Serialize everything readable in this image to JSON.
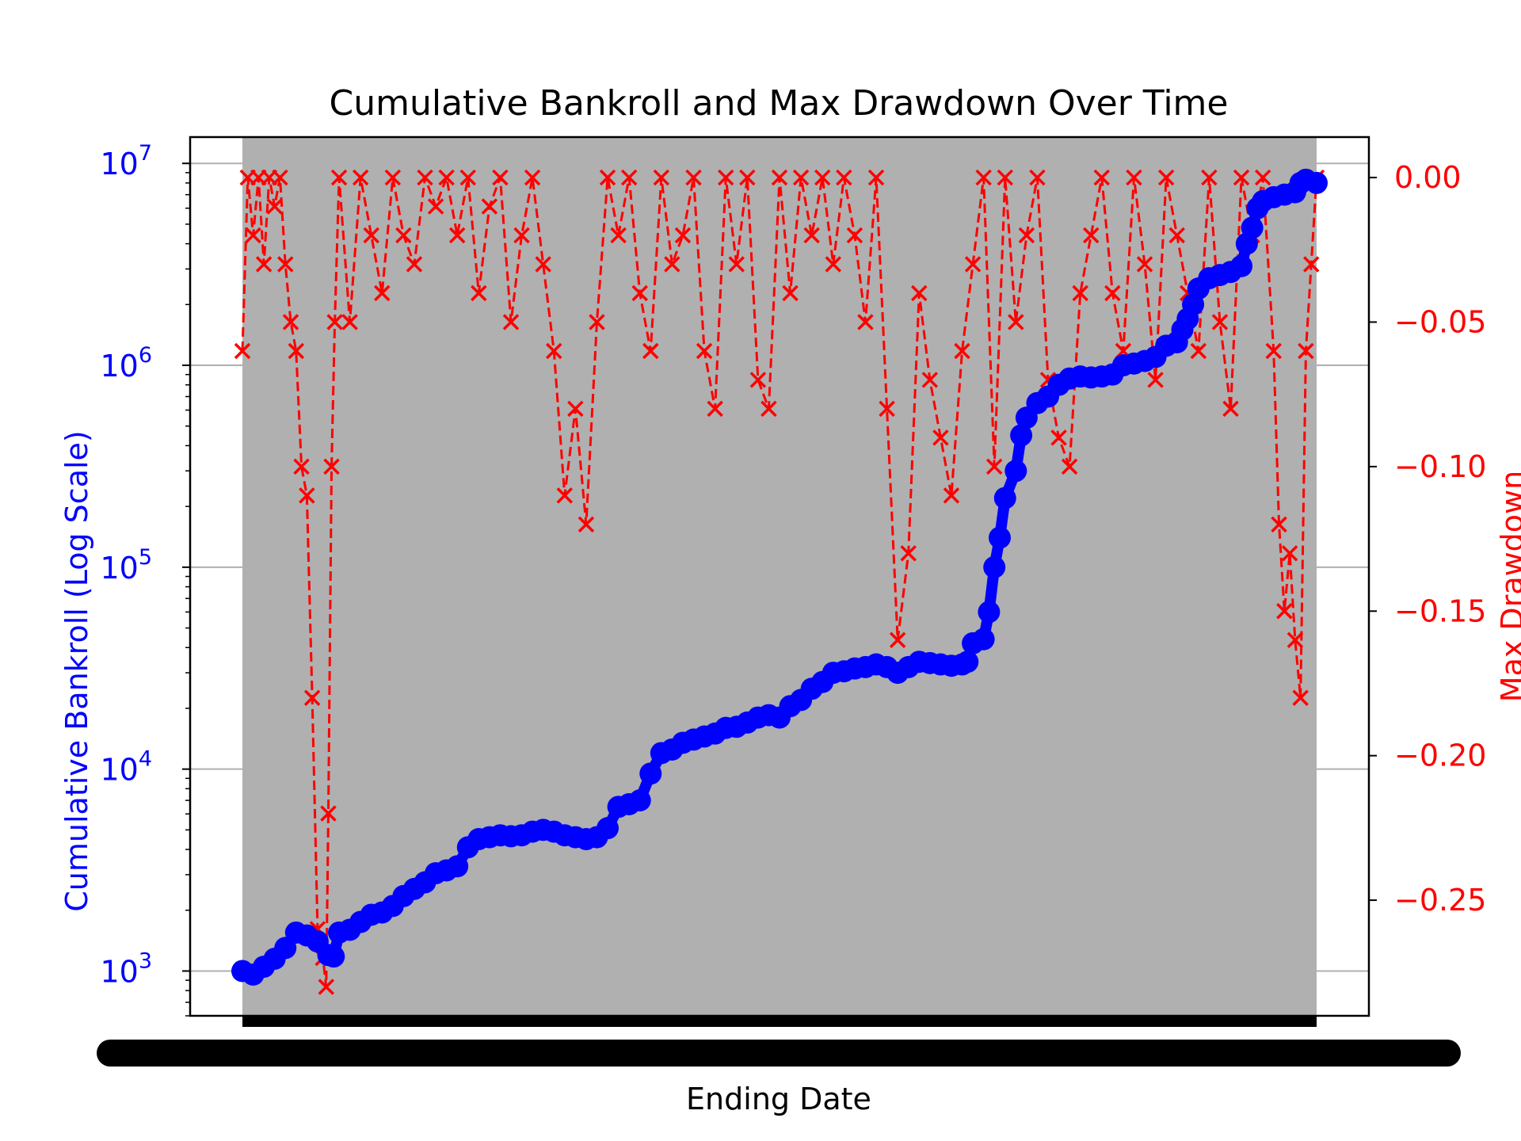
{
  "chart_data": {
    "type": "line",
    "title": "Cumulative Bankroll and Max Drawdown Over Time",
    "xlabel": "Ending Date",
    "ylabel_left": "Cumulative Bankroll (Log Scale)",
    "ylabel_right": "Max Drawdown",
    "y_left_scale": "log",
    "y_left_ticks": [
      {
        "value": 1000,
        "base": "10",
        "exp": "3"
      },
      {
        "value": 10000,
        "base": "10",
        "exp": "4"
      },
      {
        "value": 100000,
        "base": "10",
        "exp": "5"
      },
      {
        "value": 1000000,
        "base": "10",
        "exp": "6"
      },
      {
        "value": 10000000,
        "base": "10",
        "exp": "7"
      }
    ],
    "y_left_lim": [
      600,
      13500000
    ],
    "y_right_ticks": [
      {
        "value": 0.0,
        "label": "0.00"
      },
      {
        "value": -0.05,
        "label": "−0.05"
      },
      {
        "value": -0.1,
        "label": "−0.10"
      },
      {
        "value": -0.15,
        "label": "−0.15"
      },
      {
        "value": -0.2,
        "label": "−0.20"
      },
      {
        "value": -0.25,
        "label": "−0.25"
      }
    ],
    "y_right_lim": [
      -0.29,
      0.014
    ],
    "grid": "y",
    "colors": {
      "bankroll": "#0000ff",
      "drawdown": "#ff0000",
      "plot_background": "#b0b0b0",
      "grid": "#b0b0b0"
    },
    "x_ticks_overlapping": true,
    "series": [
      {
        "axis": "left",
        "marker": "circle",
        "style": "solid",
        "points": [
          [
            0,
            1000
          ],
          [
            0.01,
            960
          ],
          [
            0.02,
            1050
          ],
          [
            0.03,
            1150
          ],
          [
            0.04,
            1300
          ],
          [
            0.05,
            1550
          ],
          [
            0.06,
            1500
          ],
          [
            0.07,
            1400
          ],
          [
            0.08,
            1200
          ],
          [
            0.085,
            1180
          ],
          [
            0.09,
            1550
          ],
          [
            0.1,
            1600
          ],
          [
            0.11,
            1750
          ],
          [
            0.12,
            1900
          ],
          [
            0.13,
            1950
          ],
          [
            0.14,
            2100
          ],
          [
            0.15,
            2350
          ],
          [
            0.16,
            2550
          ],
          [
            0.17,
            2750
          ],
          [
            0.18,
            3050
          ],
          [
            0.19,
            3150
          ],
          [
            0.2,
            3300
          ],
          [
            0.21,
            4100
          ],
          [
            0.22,
            4500
          ],
          [
            0.23,
            4600
          ],
          [
            0.24,
            4700
          ],
          [
            0.25,
            4650
          ],
          [
            0.26,
            4700
          ],
          [
            0.27,
            4900
          ],
          [
            0.28,
            5000
          ],
          [
            0.29,
            4900
          ],
          [
            0.3,
            4700
          ],
          [
            0.31,
            4600
          ],
          [
            0.32,
            4500
          ],
          [
            0.33,
            4600
          ],
          [
            0.34,
            5100
          ],
          [
            0.35,
            6500
          ],
          [
            0.36,
            6700
          ],
          [
            0.37,
            7000
          ],
          [
            0.38,
            9500
          ],
          [
            0.39,
            12000
          ],
          [
            0.4,
            12500
          ],
          [
            0.41,
            13500
          ],
          [
            0.42,
            14000
          ],
          [
            0.43,
            14500
          ],
          [
            0.44,
            15000
          ],
          [
            0.45,
            16000
          ],
          [
            0.46,
            16200
          ],
          [
            0.47,
            17000
          ],
          [
            0.48,
            18000
          ],
          [
            0.49,
            18500
          ],
          [
            0.5,
            18000
          ],
          [
            0.51,
            20500
          ],
          [
            0.52,
            22000
          ],
          [
            0.53,
            25000
          ],
          [
            0.54,
            27000
          ],
          [
            0.55,
            30000
          ],
          [
            0.56,
            30500
          ],
          [
            0.57,
            31500
          ],
          [
            0.58,
            32000
          ],
          [
            0.59,
            33000
          ],
          [
            0.6,
            32000
          ],
          [
            0.61,
            30000
          ],
          [
            0.62,
            32000
          ],
          [
            0.63,
            34000
          ],
          [
            0.64,
            33500
          ],
          [
            0.65,
            33000
          ],
          [
            0.66,
            32500
          ],
          [
            0.67,
            33000
          ],
          [
            0.675,
            34000
          ],
          [
            0.68,
            42000
          ],
          [
            0.69,
            44000
          ],
          [
            0.695,
            60000
          ],
          [
            0.7,
            100000
          ],
          [
            0.705,
            140000
          ],
          [
            0.71,
            220000
          ],
          [
            0.72,
            300000
          ],
          [
            0.725,
            450000
          ],
          [
            0.73,
            550000
          ],
          [
            0.74,
            650000
          ],
          [
            0.75,
            700000
          ],
          [
            0.76,
            800000
          ],
          [
            0.77,
            860000
          ],
          [
            0.78,
            880000
          ],
          [
            0.79,
            870000
          ],
          [
            0.8,
            880000
          ],
          [
            0.81,
            900000
          ],
          [
            0.82,
            1000000
          ],
          [
            0.83,
            1020000
          ],
          [
            0.84,
            1050000
          ],
          [
            0.85,
            1100000
          ],
          [
            0.86,
            1250000
          ],
          [
            0.87,
            1300000
          ],
          [
            0.875,
            1500000
          ],
          [
            0.88,
            1700000
          ],
          [
            0.885,
            2000000
          ],
          [
            0.89,
            2400000
          ],
          [
            0.9,
            2700000
          ],
          [
            0.91,
            2800000
          ],
          [
            0.92,
            2900000
          ],
          [
            0.93,
            3100000
          ],
          [
            0.935,
            4000000
          ],
          [
            0.94,
            4800000
          ],
          [
            0.945,
            6000000
          ],
          [
            0.95,
            6500000
          ],
          [
            0.96,
            6800000
          ],
          [
            0.97,
            7000000
          ],
          [
            0.98,
            7200000
          ],
          [
            0.985,
            8000000
          ],
          [
            0.99,
            8300000
          ],
          [
            1.0,
            8000000
          ]
        ]
      },
      {
        "axis": "right",
        "marker": "x",
        "style": "dashed",
        "points": [
          [
            0.0,
            -0.06
          ],
          [
            0.005,
            0
          ],
          [
            0.01,
            -0.02
          ],
          [
            0.015,
            0
          ],
          [
            0.02,
            -0.03
          ],
          [
            0.025,
            0
          ],
          [
            0.03,
            -0.01
          ],
          [
            0.035,
            0
          ],
          [
            0.04,
            -0.03
          ],
          [
            0.045,
            -0.05
          ],
          [
            0.05,
            -0.06
          ],
          [
            0.055,
            -0.1
          ],
          [
            0.06,
            -0.11
          ],
          [
            0.065,
            -0.18
          ],
          [
            0.07,
            -0.26
          ],
          [
            0.075,
            -0.27
          ],
          [
            0.078,
            -0.28
          ],
          [
            0.08,
            -0.22
          ],
          [
            0.083,
            -0.1
          ],
          [
            0.086,
            -0.05
          ],
          [
            0.09,
            0
          ],
          [
            0.1,
            -0.05
          ],
          [
            0.11,
            0
          ],
          [
            0.12,
            -0.02
          ],
          [
            0.13,
            -0.04
          ],
          [
            0.14,
            0
          ],
          [
            0.15,
            -0.02
          ],
          [
            0.16,
            -0.03
          ],
          [
            0.17,
            0
          ],
          [
            0.18,
            -0.01
          ],
          [
            0.19,
            0
          ],
          [
            0.2,
            -0.02
          ],
          [
            0.21,
            0
          ],
          [
            0.22,
            -0.04
          ],
          [
            0.23,
            -0.01
          ],
          [
            0.24,
            0
          ],
          [
            0.25,
            -0.05
          ],
          [
            0.26,
            -0.02
          ],
          [
            0.27,
            0
          ],
          [
            0.28,
            -0.03
          ],
          [
            0.29,
            -0.06
          ],
          [
            0.3,
            -0.11
          ],
          [
            0.31,
            -0.08
          ],
          [
            0.32,
            -0.12
          ],
          [
            0.33,
            -0.05
          ],
          [
            0.34,
            0
          ],
          [
            0.35,
            -0.02
          ],
          [
            0.36,
            0
          ],
          [
            0.37,
            -0.04
          ],
          [
            0.38,
            -0.06
          ],
          [
            0.39,
            0
          ],
          [
            0.4,
            -0.03
          ],
          [
            0.41,
            -0.02
          ],
          [
            0.42,
            0
          ],
          [
            0.43,
            -0.06
          ],
          [
            0.44,
            -0.08
          ],
          [
            0.45,
            0
          ],
          [
            0.46,
            -0.03
          ],
          [
            0.47,
            0
          ],
          [
            0.48,
            -0.07
          ],
          [
            0.49,
            -0.08
          ],
          [
            0.5,
            0
          ],
          [
            0.51,
            -0.04
          ],
          [
            0.52,
            0
          ],
          [
            0.53,
            -0.02
          ],
          [
            0.54,
            0
          ],
          [
            0.55,
            -0.03
          ],
          [
            0.56,
            0
          ],
          [
            0.57,
            -0.02
          ],
          [
            0.58,
            -0.05
          ],
          [
            0.59,
            0
          ],
          [
            0.6,
            -0.08
          ],
          [
            0.61,
            -0.16
          ],
          [
            0.62,
            -0.13
          ],
          [
            0.63,
            -0.04
          ],
          [
            0.64,
            -0.07
          ],
          [
            0.65,
            -0.09
          ],
          [
            0.66,
            -0.11
          ],
          [
            0.67,
            -0.06
          ],
          [
            0.68,
            -0.03
          ],
          [
            0.69,
            0
          ],
          [
            0.7,
            -0.1
          ],
          [
            0.71,
            0
          ],
          [
            0.72,
            -0.05
          ],
          [
            0.73,
            -0.02
          ],
          [
            0.74,
            0
          ],
          [
            0.75,
            -0.07
          ],
          [
            0.76,
            -0.09
          ],
          [
            0.77,
            -0.1
          ],
          [
            0.78,
            -0.04
          ],
          [
            0.79,
            -0.02
          ],
          [
            0.8,
            0
          ],
          [
            0.81,
            -0.04
          ],
          [
            0.82,
            -0.06
          ],
          [
            0.83,
            0
          ],
          [
            0.84,
            -0.03
          ],
          [
            0.85,
            -0.07
          ],
          [
            0.86,
            0
          ],
          [
            0.87,
            -0.02
          ],
          [
            0.88,
            -0.04
          ],
          [
            0.89,
            -0.06
          ],
          [
            0.9,
            0
          ],
          [
            0.91,
            -0.05
          ],
          [
            0.92,
            -0.08
          ],
          [
            0.93,
            0
          ],
          [
            0.94,
            -0.02
          ],
          [
            0.95,
            0
          ],
          [
            0.96,
            -0.06
          ],
          [
            0.965,
            -0.12
          ],
          [
            0.97,
            -0.15
          ],
          [
            0.975,
            -0.13
          ],
          [
            0.98,
            -0.16
          ],
          [
            0.985,
            -0.18
          ],
          [
            0.99,
            -0.06
          ],
          [
            0.995,
            -0.03
          ],
          [
            1.0,
            0
          ]
        ]
      }
    ]
  }
}
